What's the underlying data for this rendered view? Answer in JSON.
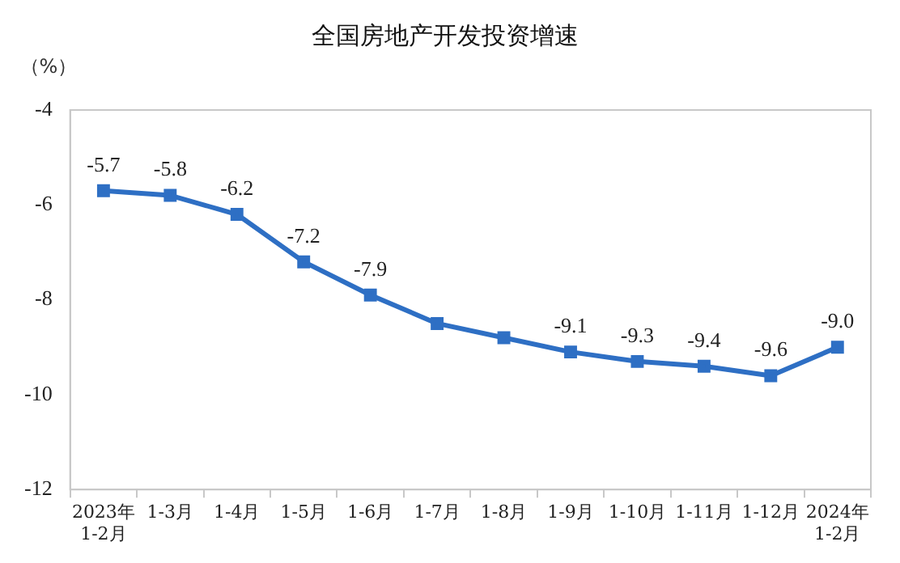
{
  "chart_data": {
    "type": "line",
    "title": "全国房地产开发投资增速",
    "ylabel": "（%）",
    "categories": [
      "2023年\n1-2月",
      "1-3月",
      "1-4月",
      "1-5月",
      "1-6月",
      "1-7月",
      "1-8月",
      "1-9月",
      "1-10月",
      "1-11月",
      "1-12月",
      "2024年\n1-2月"
    ],
    "series": [
      {
        "color": "#2e6fc4",
        "values": [
          -5.7,
          -5.8,
          -6.2,
          -7.2,
          -7.9,
          -8.5,
          -8.8,
          -9.1,
          -9.3,
          -9.4,
          -9.6,
          -9.0
        ],
        "value_labels": [
          "-5.7",
          "-5.8",
          "-6.2",
          "-7.2",
          "-7.9",
          null,
          null,
          "-9.1",
          "-9.3",
          "-9.4",
          "-9.6",
          "-9.0"
        ]
      }
    ],
    "ylim": [
      -12,
      -4
    ],
    "yticks": [
      -12,
      -10,
      -8,
      -6,
      -4
    ],
    "grid": false,
    "legend": false,
    "marker": "square",
    "line_style": "solid"
  }
}
